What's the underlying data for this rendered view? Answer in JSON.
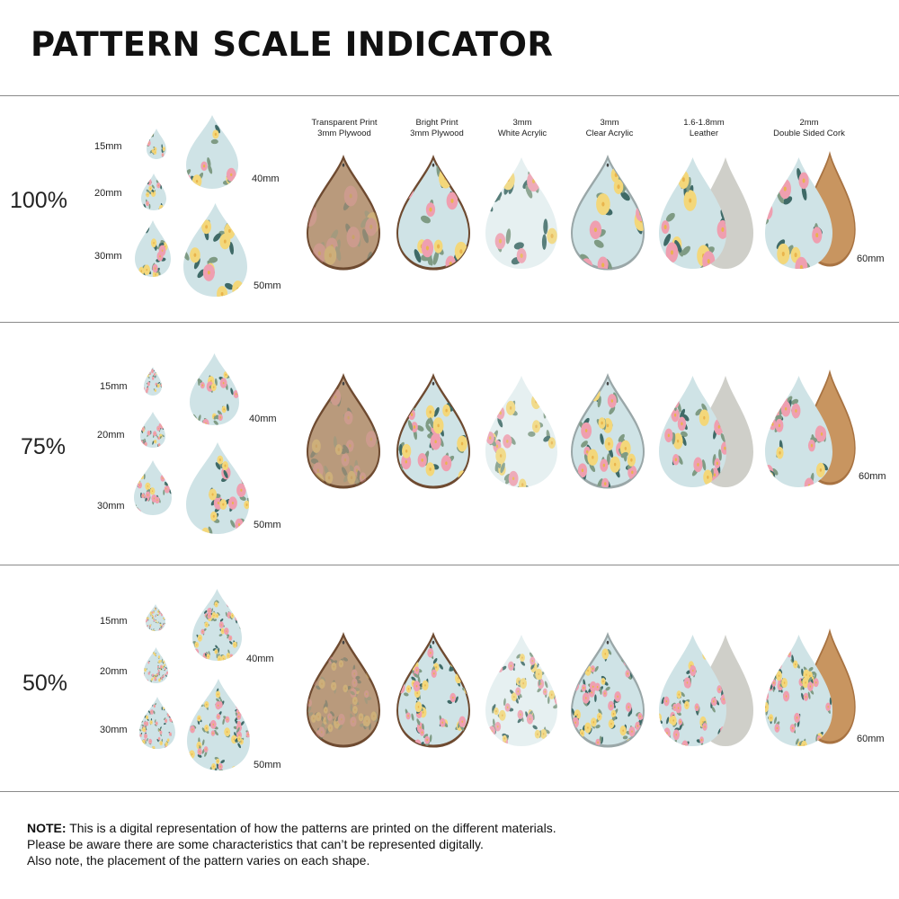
{
  "title": "PATTERN SCALE INDICATOR",
  "sizes": [
    "15mm",
    "20mm",
    "30mm",
    "40mm",
    "50mm"
  ],
  "size_60": "60mm",
  "materials": [
    {
      "line1": "Transparent Print",
      "line2": "3mm Plywood"
    },
    {
      "line1": "Bright Print",
      "line2": "3mm Plywood"
    },
    {
      "line1": "3mm",
      "line2": "White Acrylic"
    },
    {
      "line1": "3mm",
      "line2": "Clear Acrylic"
    },
    {
      "line1": "1.6-1.8mm",
      "line2": "Leather"
    },
    {
      "line1": "2mm",
      "line2": "Double Sided Cork"
    }
  ],
  "sections": [
    {
      "scale": "100%",
      "scale_value": 1.0
    },
    {
      "scale": "75%",
      "scale_value": 0.75
    },
    {
      "scale": "50%",
      "scale_value": 0.5
    }
  ],
  "note": {
    "label": "NOTE:",
    "line1": " This is a digital representation of how the patterns are printed on the different materials.",
    "line2": "Please be aware there are some characteristics that can’t be represented digitally.",
    "line3": "Also note, the placement of the pattern varies on each shape."
  },
  "colors": {
    "pattern_bg": "#cfe3e6",
    "wood": "#b99a7c",
    "wood_edge": "#6e4a30",
    "leather_back": "#cfcfc9",
    "cork": "#c89560",
    "flower_pink": "#ef9fb0",
    "flower_yellow": "#f3d77a",
    "leaf_green": "#7f9b84",
    "leaf_dark": "#3f6a67",
    "divider": "#8a8a8a"
  }
}
